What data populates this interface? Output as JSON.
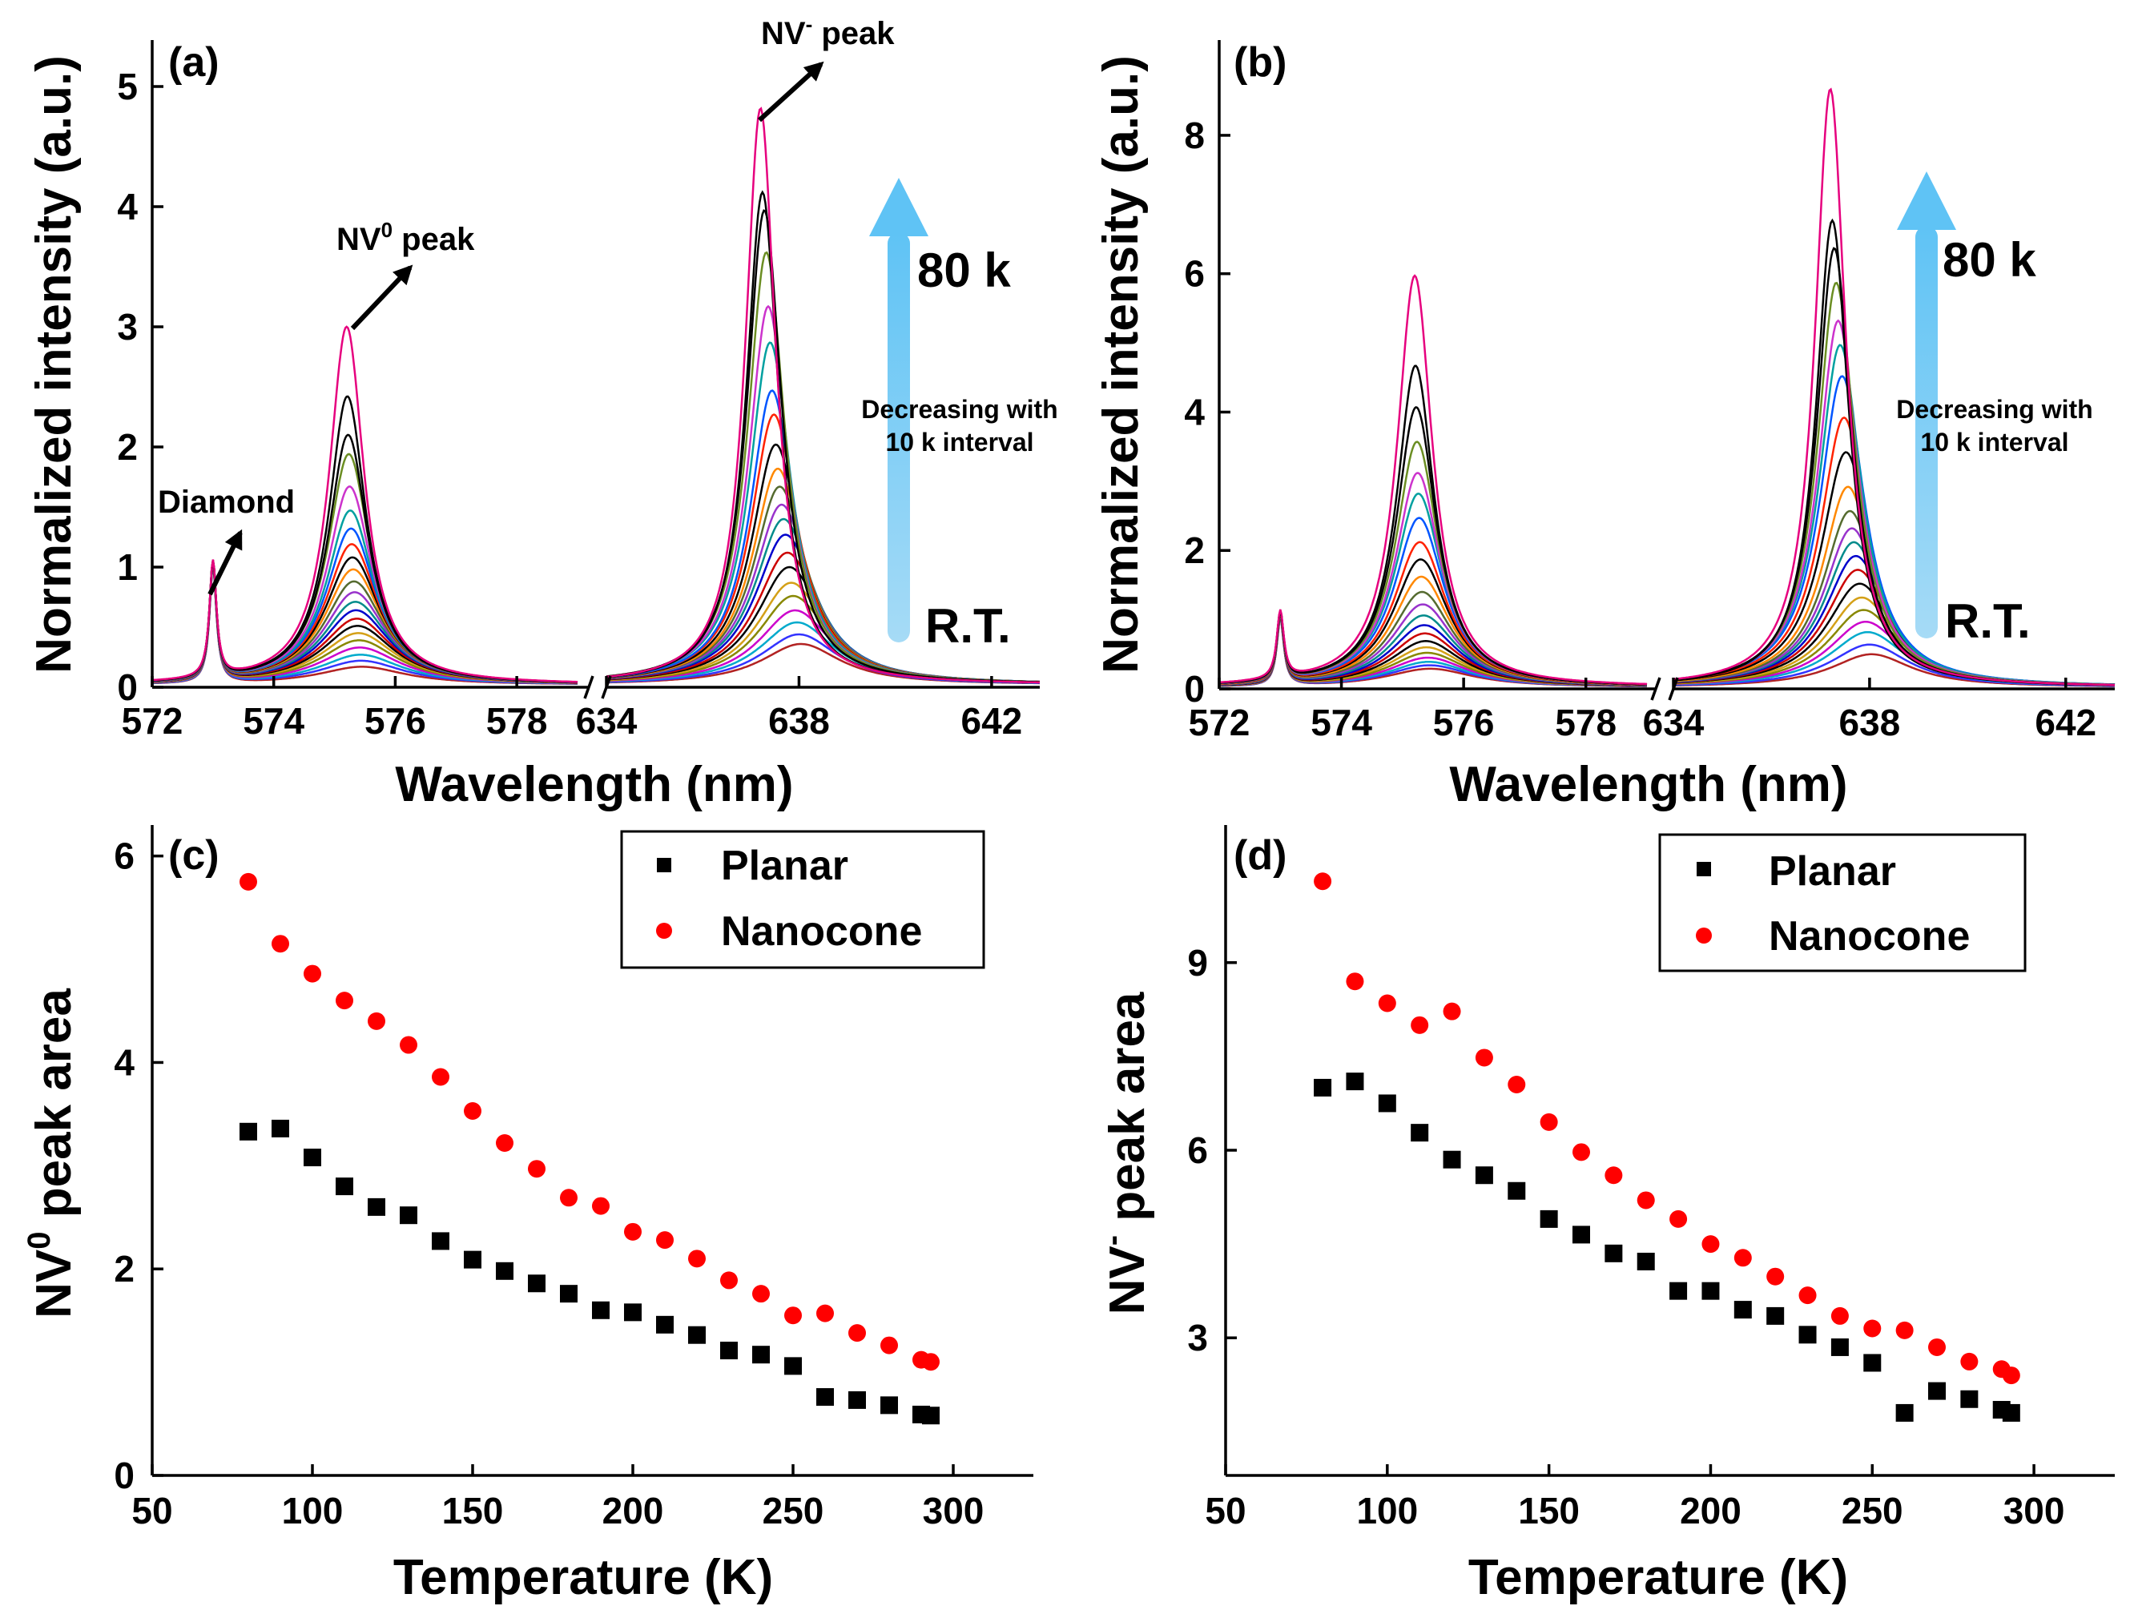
{
  "chart_data": [
    {
      "id": "a",
      "type": "line",
      "panel_label": "(a)",
      "xlabel": "Wavelength (nm)",
      "ylabel": "Normalized intensity (a.u.)",
      "x_segments": [
        [
          572,
          579
        ],
        [
          634,
          643
        ]
      ],
      "x_ticks": [
        "572",
        "574",
        "576",
        "578",
        "634",
        "638",
        "642"
      ],
      "ylim": [
        0,
        5.4
      ],
      "y_ticks": [
        "0",
        "1",
        "2",
        "3",
        "4",
        "5"
      ],
      "series_count": 22,
      "diamond_peak": {
        "x": 573,
        "value": 0.97
      },
      "nv0_peak_values": [
        2.98,
        2.4,
        2.08,
        1.92,
        1.65,
        1.45,
        1.3,
        1.17,
        1.06,
        0.96,
        0.86,
        0.77,
        0.69,
        0.62,
        0.55,
        0.49,
        0.43,
        0.37,
        0.31,
        0.25,
        0.2,
        0.15
      ],
      "nvm_peak_values": [
        4.8,
        4.1,
        3.95,
        3.6,
        3.15,
        2.85,
        2.45,
        2.25,
        2.0,
        1.8,
        1.65,
        1.5,
        1.38,
        1.25,
        1.1,
        0.98,
        0.85,
        0.74,
        0.62,
        0.52,
        0.42,
        0.34
      ],
      "annotations": {
        "diamond": "Diamond",
        "nv0": "NV",
        "nv0_sup": "0",
        "nv0_suffix": " peak",
        "nvm": "NV",
        "nvm_sup": "-",
        "nvm_suffix": " peak",
        "top": "80 k",
        "bottom": "R.T.",
        "middle_line1": "Decreasing with",
        "middle_line2": "10 k interval"
      }
    },
    {
      "id": "b",
      "type": "line",
      "panel_label": "(b)",
      "xlabel": "Wavelength (nm)",
      "ylabel": "Normalized intensity (a.u.)",
      "x_segments": [
        [
          572,
          579
        ],
        [
          634,
          643
        ]
      ],
      "x_ticks": [
        "572",
        "574",
        "576",
        "578",
        "634",
        "638",
        "642"
      ],
      "ylim": [
        0,
        9.4
      ],
      "y_ticks": [
        "0",
        "2",
        "4",
        "6",
        "8"
      ],
      "series_count": 22,
      "diamond_peak": {
        "x": 573,
        "value": 0.98
      },
      "nv0_peak_values": [
        5.95,
        4.65,
        4.05,
        3.55,
        3.1,
        2.8,
        2.45,
        2.1,
        1.85,
        1.6,
        1.38,
        1.2,
        1.04,
        0.9,
        0.78,
        0.67,
        0.58,
        0.5,
        0.43,
        0.37,
        0.32,
        0.27
      ],
      "nvm_peak_values": [
        8.65,
        6.75,
        6.35,
        5.85,
        5.3,
        4.95,
        4.5,
        3.9,
        3.4,
        2.9,
        2.55,
        2.3,
        2.1,
        1.9,
        1.7,
        1.5,
        1.3,
        1.12,
        0.95,
        0.8,
        0.62,
        0.48
      ],
      "annotations": {
        "top": "80 k",
        "bottom": "R.T.",
        "middle_line1": "Decreasing with",
        "middle_line2": "10 k interval"
      }
    },
    {
      "id": "c",
      "type": "scatter",
      "panel_label": "(c)",
      "xlabel": "Temperature (K)",
      "ylabel": "NV",
      "ylabel_sup": "0",
      "ylabel_suffix": " peak area",
      "xlim": [
        50,
        325
      ],
      "x_ticks": [
        50,
        100,
        150,
        200,
        250,
        300
      ],
      "ylim": [
        0,
        6.3
      ],
      "y_ticks": [
        0,
        2,
        4,
        6
      ],
      "legend": [
        "Planar",
        "Nanocone"
      ],
      "series": [
        {
          "name": "Planar",
          "marker": "square",
          "x": [
            80,
            90,
            100,
            110,
            120,
            130,
            140,
            150,
            160,
            170,
            180,
            190,
            200,
            210,
            220,
            230,
            240,
            250,
            260,
            270,
            280,
            290,
            293
          ],
          "y": [
            3.33,
            3.36,
            3.08,
            2.8,
            2.6,
            2.52,
            2.27,
            2.09,
            1.98,
            1.86,
            1.76,
            1.6,
            1.58,
            1.46,
            1.36,
            1.21,
            1.17,
            1.06,
            0.76,
            0.73,
            0.68,
            0.59,
            0.58
          ]
        },
        {
          "name": "Nanocone",
          "marker": "circle",
          "x": [
            80,
            90,
            100,
            110,
            120,
            130,
            140,
            150,
            160,
            170,
            180,
            190,
            200,
            210,
            220,
            230,
            240,
            250,
            260,
            270,
            280,
            290,
            293
          ],
          "y": [
            5.75,
            5.15,
            4.86,
            4.6,
            4.4,
            4.17,
            3.86,
            3.53,
            3.22,
            2.97,
            2.69,
            2.61,
            2.36,
            2.28,
            2.1,
            1.89,
            1.76,
            1.55,
            1.57,
            1.38,
            1.26,
            1.12,
            1.1
          ]
        }
      ]
    },
    {
      "id": "d",
      "type": "scatter",
      "panel_label": "(d)",
      "xlabel": "Temperature (K)",
      "ylabel": "NV",
      "ylabel_sup": "-",
      "ylabel_suffix": " peak area",
      "xlim": [
        50,
        325
      ],
      "x_ticks": [
        50,
        100,
        150,
        200,
        250,
        300
      ],
      "ylim": [
        0.8,
        11.2
      ],
      "y_ticks": [
        3,
        6,
        9
      ],
      "legend": [
        "Planar",
        "Nanocone"
      ],
      "series": [
        {
          "name": "Planar",
          "marker": "square",
          "x": [
            80,
            90,
            100,
            110,
            120,
            130,
            140,
            150,
            160,
            170,
            180,
            190,
            200,
            210,
            220,
            230,
            240,
            250,
            260,
            270,
            280,
            290,
            293
          ],
          "y": [
            7.0,
            7.1,
            6.75,
            6.28,
            5.85,
            5.6,
            5.35,
            4.9,
            4.65,
            4.35,
            4.22,
            3.75,
            3.75,
            3.45,
            3.35,
            3.05,
            2.85,
            2.6,
            1.8,
            2.15,
            2.02,
            1.85,
            1.8
          ]
        },
        {
          "name": "Nanocone",
          "marker": "circle",
          "x": [
            80,
            90,
            100,
            110,
            120,
            130,
            140,
            150,
            160,
            170,
            180,
            190,
            200,
            210,
            220,
            230,
            240,
            250,
            260,
            270,
            280,
            290,
            293
          ],
          "y": [
            10.3,
            8.7,
            8.35,
            8.0,
            8.22,
            7.48,
            7.05,
            6.45,
            5.97,
            5.6,
            5.2,
            4.9,
            4.5,
            4.28,
            3.98,
            3.68,
            3.35,
            3.15,
            3.12,
            2.85,
            2.62,
            2.5,
            2.4
          ]
        }
      ]
    }
  ]
}
